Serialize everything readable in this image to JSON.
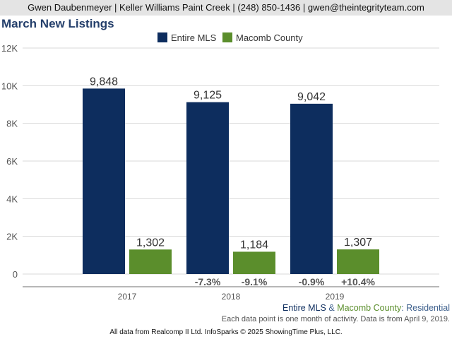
{
  "header": {
    "contact_line": "Gwen Daubenmeyer | Keller Williams Paint Creek | (248) 850-1436 | gwen@theintegrityteam.com"
  },
  "chart_data": {
    "type": "bar",
    "title": "March New Listings",
    "categories": [
      "2017",
      "2018",
      "2019"
    ],
    "series": [
      {
        "name": "Entire MLS",
        "color": "#0d2d5e",
        "values": [
          9848,
          9125,
          9042
        ],
        "labels": [
          "9,848",
          "9,125",
          "9,042"
        ],
        "change": [
          "",
          "-7.3%",
          "-0.9%"
        ]
      },
      {
        "name": "Macomb County",
        "color": "#5b8e2c",
        "values": [
          1302,
          1184,
          1307
        ],
        "labels": [
          "1,302",
          "1,184",
          "1,307"
        ],
        "change": [
          "",
          "-9.1%",
          "+10.4%"
        ]
      }
    ],
    "yticks": [
      0,
      2000,
      4000,
      6000,
      8000,
      10000,
      12000
    ],
    "ytick_labels": [
      "0",
      "2K",
      "4K",
      "6K",
      "8K",
      "10K",
      "12K"
    ],
    "ylim": [
      0,
      12000
    ],
    "grid": true,
    "legend_position": "top-center"
  },
  "footer": {
    "series_a": "Entire MLS",
    "connector": " & ",
    "series_b": "Macomb County",
    "suffix": ": Residential",
    "note": "Each data point is one month of activity. Data is from April 9, 2019.",
    "source": "All data from Realcomp II Ltd. InfoSparks © 2025 ShowingTime Plus, LLC.",
    "colors": {
      "series_a": "#0d2d5e",
      "series_b": "#5b8e2c",
      "suffix": "#3d5f8c"
    }
  }
}
